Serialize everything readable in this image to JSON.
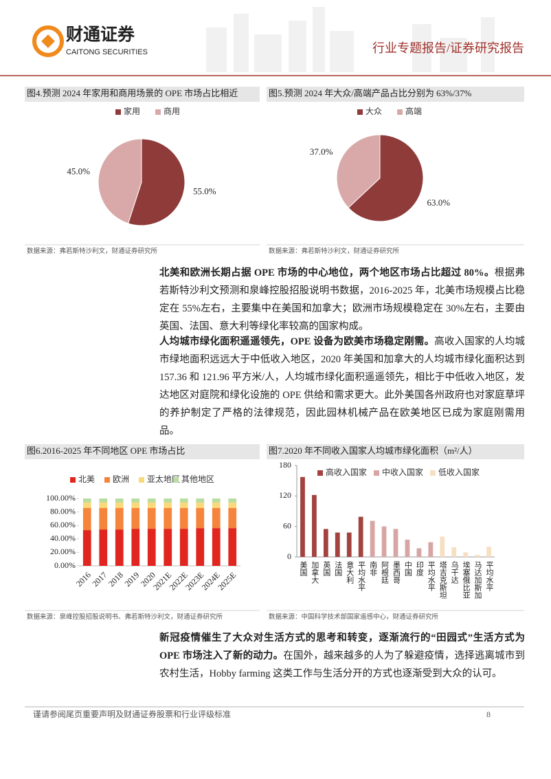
{
  "header": {
    "logo_cn": "财通证券",
    "logo_en": "CAITONG SECURITIES",
    "report_type": "行业专题报告/证券研究报告"
  },
  "chart_data": [
    {
      "type": "pie",
      "title": "图4.预测 2024 年家用和商用场景的 OPE 市场占比相近",
      "categories": [
        "家用",
        "商用"
      ],
      "values": [
        55,
        45
      ],
      "value_labels": [
        "55.0%",
        "45.0%"
      ],
      "colors": [
        "#8e3b3a",
        "#d8a9a8"
      ],
      "source": "数据来源：弗若斯特沙利文，财通证券研究所"
    },
    {
      "type": "pie",
      "title": "图5.预测 2024 年大众/高端产品占比分别为 63%/37%",
      "categories": [
        "大众",
        "高端"
      ],
      "values": [
        63,
        37
      ],
      "value_labels": [
        "63.0%",
        "37.0%"
      ],
      "colors": [
        "#8e3b3a",
        "#d8a9a8"
      ],
      "source": "数据来源：弗若斯特沙利文，财通证券研究所"
    },
    {
      "type": "stacked_bar",
      "title": "图6.2016-2025 年不同地区 OPE 市场占比",
      "categories": [
        "2016",
        "2017",
        "2018",
        "2019",
        "2020",
        "2021E",
        "2022E",
        "2023E",
        "2024E",
        "2025E"
      ],
      "series": [
        {
          "name": "北美",
          "color": "#e0261f",
          "values": [
            53,
            54,
            54,
            55,
            55,
            55,
            55,
            56,
            56,
            56
          ]
        },
        {
          "name": "欧洲",
          "color": "#f5843c",
          "values": [
            33,
            32,
            32,
            31,
            31,
            31,
            31,
            30,
            30,
            30
          ]
        },
        {
          "name": "亚太地区",
          "color": "#fbd97a",
          "values": [
            8,
            8,
            8,
            8,
            8,
            8,
            8,
            8,
            8,
            8
          ]
        },
        {
          "name": "其他地区",
          "color": "#b9dca0",
          "values": [
            6,
            6,
            6,
            6,
            6,
            6,
            6,
            6,
            6,
            6
          ]
        }
      ],
      "ylim": [
        0,
        100
      ],
      "yticks": [
        {
          "value": 0,
          "label": "0.00%"
        },
        {
          "value": 20,
          "label": "20.00%"
        },
        {
          "value": 40,
          "label": "40.00%"
        },
        {
          "value": 60,
          "label": "60.00%"
        },
        {
          "value": 80,
          "label": "80.00%"
        },
        {
          "value": 100,
          "label": "100.00%"
        }
      ],
      "source": "数据来源：泉峰控股招股说明书、弗若斯特沙利文，财通证券研究所"
    },
    {
      "type": "bar",
      "title": "图7.2020 年不同收入国家人均城市绿化面积（m²/人）",
      "categories": [
        "美国",
        "加拿大",
        "英国",
        "法国",
        "意大利",
        "平均水平",
        "南非",
        "阿根廷",
        "墨西哥",
        "中国",
        "印度",
        "平均水平",
        "塔吉克斯坦",
        "乌干达",
        "埃塞俄比亚",
        "马达加斯加",
        "平均水平"
      ],
      "series": [
        {
          "name": "高收入国家",
          "color": "#a3423e",
          "values": [
            157.36,
            121.96,
            55,
            48,
            48,
            79,
            null,
            null,
            null,
            null,
            null,
            null,
            null,
            null,
            null,
            null,
            null
          ]
        },
        {
          "name": "中收入国家",
          "color": "#d7a6a4",
          "values": [
            null,
            null,
            null,
            null,
            null,
            null,
            71,
            60,
            55,
            34,
            17,
            29,
            null,
            null,
            null,
            null,
            null
          ]
        },
        {
          "name": "低收入国家",
          "color": "#f7dfc2",
          "values": [
            null,
            null,
            null,
            null,
            null,
            null,
            null,
            null,
            null,
            null,
            null,
            null,
            40,
            19,
            9,
            4,
            20
          ]
        }
      ],
      "ylim": [
        0,
        180
      ],
      "yticks": [
        0,
        60,
        120,
        180
      ],
      "source": "数据来源：中国科学技术部国家遥感中心，财通证券研究所"
    }
  ],
  "paragraphs": [
    {
      "lead": "北美和欧洲长期占据 OPE 市场的中心地位，两个地区市场占比超过 80%。",
      "text": "根据弗若斯特沙利文预测和泉峰控股招股说明书数据，2016-2025 年，北美市场规模占比稳定在 55%左右，主要集中在美国和加拿大；欧洲市场规模稳定在 30%左右，主要由英国、法国、意大利等绿化率较高的国家构成。"
    },
    {
      "lead": "人均城市绿化面积遥遥领先，OPE 设备为欧美市场稳定刚需。",
      "text": "高收入国家的人均城市绿地面积远远大于中低收入地区，2020 年美国和加拿大的人均城市绿化面积达到 157.36 和 121.96 平方米/人，人均城市绿化面积遥遥领先，相比于中低收入地区，发达地区对庭院和绿化设施的 OPE 供给和需求更大。此外美国各州政府也对家庭草坪的养护制定了严格的法律规范，因此园林机械产品在欧美地区已成为家庭刚需用品。"
    },
    {
      "lead": "新冠疫情催生了大众对生活方式的思考和转变，逐渐流行的“田园式”生活方式为 OPE 市场注入了新的动力。",
      "text": "在国外，越来越多的人为了躲避疫情，选择逃离城市到农村生活，Hobby farming 这类工作与生活分开的方式也逐渐受到大众的认可。"
    }
  ],
  "footer": {
    "disclaimer": "谨请参阅尾页重要声明及财通证券股票和行业评级标准",
    "page": "8"
  }
}
